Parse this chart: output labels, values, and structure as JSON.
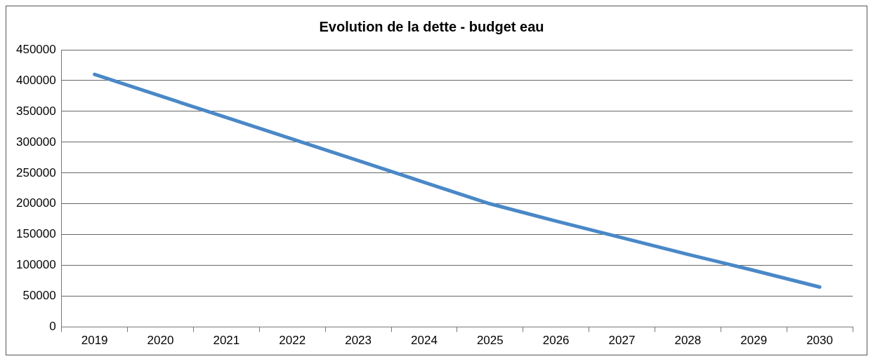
{
  "chart_data": {
    "type": "line",
    "title": "Evolution de la dette - budget eau",
    "categories": [
      "2019",
      "2020",
      "2021",
      "2022",
      "2023",
      "2024",
      "2025",
      "2026",
      "2027",
      "2028",
      "2029",
      "2030"
    ],
    "series": [
      {
        "color": "#4a88c7",
        "values": [
          410000,
          375000,
          340000,
          305000,
          270000,
          235000,
          200000,
          172000,
          145000,
          118000,
          92000,
          65000
        ]
      }
    ],
    "ylim": [
      0,
      450000
    ],
    "yticks": [
      0,
      50000,
      100000,
      150000,
      200000,
      250000,
      300000,
      350000,
      400000,
      450000
    ],
    "grid": "y",
    "legend": false,
    "marker": "none",
    "line_style": "solid"
  }
}
